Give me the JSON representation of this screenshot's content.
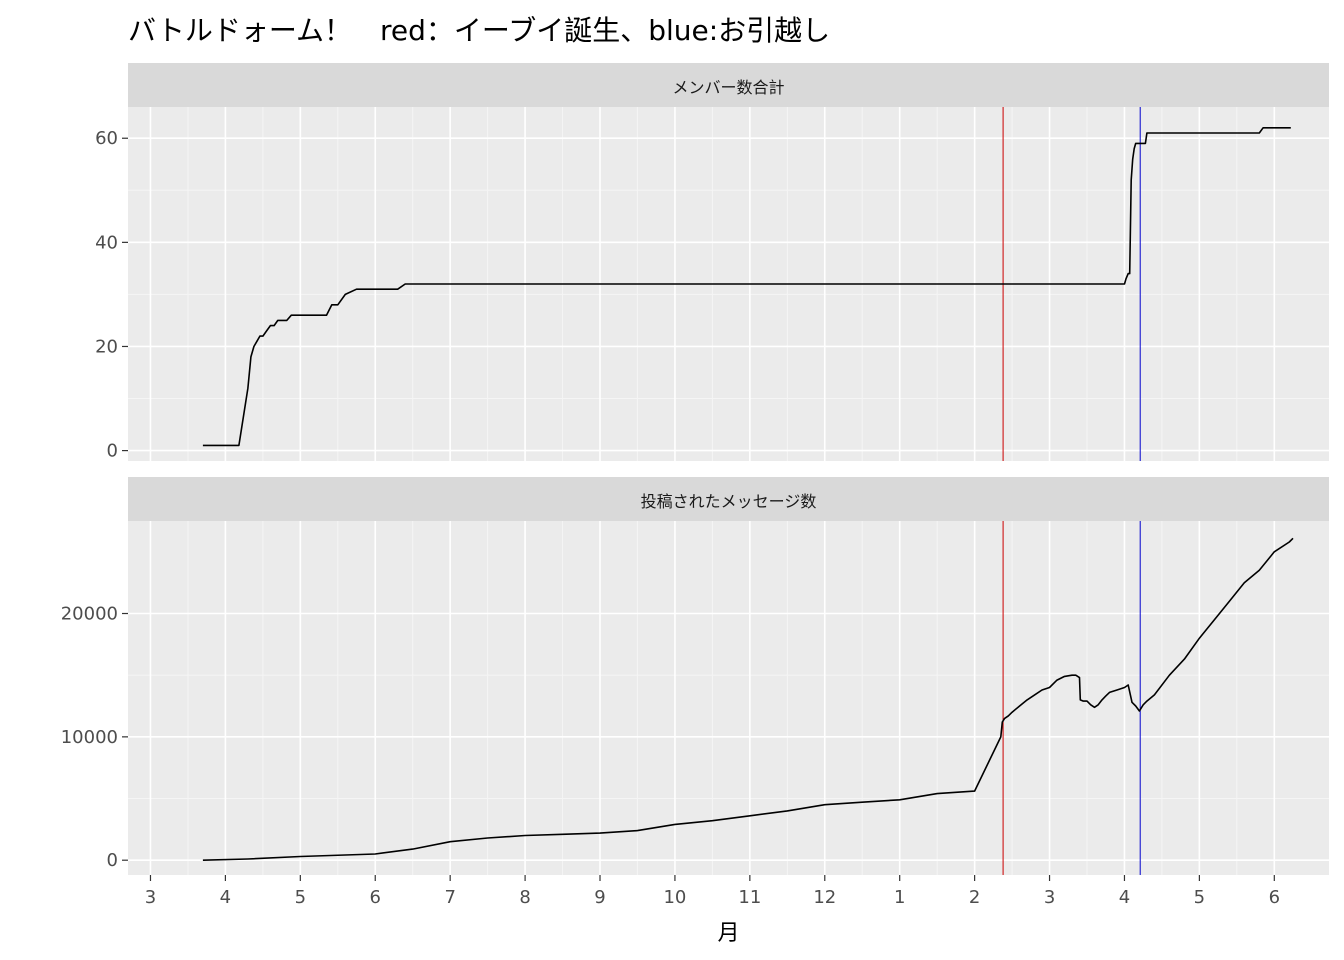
{
  "chart_data": {
    "type": "line",
    "title": "バトルドォーム！　red：イーブイ誕生、blue:お引越し",
    "xlabel": "月",
    "x_tick_labels": [
      "3",
      "4",
      "5",
      "6",
      "7",
      "8",
      "9",
      "10",
      "11",
      "12",
      "1",
      "2",
      "3",
      "4",
      "5",
      "6"
    ],
    "vlines": [
      {
        "x": 11.38,
        "color": "#cc0000"
      },
      {
        "x": 13.21,
        "color": "#0000cc"
      }
    ],
    "panels": [
      {
        "strip": "メンバー数合計",
        "ylim": [
          -2,
          66
        ],
        "yticks": [
          0,
          20,
          40,
          60
        ],
        "ytick_labels": [
          "0",
          "20",
          "40",
          "60"
        ],
        "series_color": "#000000",
        "x": [
          0.7,
          1.18,
          1.3,
          1.34,
          1.38,
          1.42,
          1.46,
          1.5,
          1.55,
          1.6,
          1.65,
          1.7,
          1.75,
          1.82,
          1.88,
          1.95,
          2.0,
          2.1,
          2.18,
          2.25,
          2.35,
          2.42,
          2.5,
          2.6,
          2.75,
          3.0,
          3.2,
          3.3,
          3.4,
          4.0,
          6.0,
          8.0,
          10.0,
          11.38,
          12.0,
          13.0,
          13.02,
          13.05,
          13.07,
          13.09,
          13.11,
          13.13,
          13.15,
          13.17,
          13.2,
          13.28,
          13.3,
          13.35,
          14.0,
          14.8,
          14.85,
          15.0,
          15.22
        ],
        "y": [
          1,
          1,
          12,
          18,
          20,
          21,
          22,
          22,
          23,
          24,
          24,
          25,
          25,
          25,
          26,
          26,
          26,
          26,
          26,
          26,
          26,
          28,
          28,
          30,
          31,
          31,
          31,
          31,
          32,
          32,
          32,
          32,
          32,
          32,
          32,
          32,
          33,
          34,
          34,
          52,
          56,
          58,
          59,
          59,
          59,
          59,
          61,
          61,
          61,
          61,
          62,
          62,
          62
        ]
      },
      {
        "strip": "投稿されたメッセージ数",
        "ylim": [
          -1200,
          27500
        ],
        "yticks": [
          0,
          10000,
          20000
        ],
        "ytick_labels": [
          "0",
          "10000",
          "20000"
        ],
        "series_color": "#000000",
        "x": [
          0.7,
          1.3,
          2.0,
          3.0,
          3.5,
          4.0,
          4.5,
          5.0,
          5.5,
          6.0,
          6.5,
          7.0,
          7.5,
          8.0,
          8.5,
          9.0,
          9.5,
          10.0,
          10.5,
          11.0,
          11.35,
          11.37,
          11.4,
          11.45,
          11.5,
          11.6,
          11.7,
          11.8,
          11.9,
          12.0,
          12.1,
          12.2,
          12.3,
          12.35,
          12.4,
          12.41,
          12.45,
          12.5,
          12.55,
          12.6,
          12.65,
          12.7,
          12.75,
          12.8,
          12.9,
          13.0,
          13.05,
          13.1,
          13.15,
          13.2,
          13.25,
          13.3,
          13.4,
          13.6,
          13.8,
          14.0,
          14.2,
          14.4,
          14.6,
          14.8,
          15.0,
          15.2,
          15.25
        ],
        "y": [
          0,
          100,
          300,
          500,
          900,
          1500,
          1800,
          2000,
          2100,
          2200,
          2400,
          2900,
          3200,
          3600,
          4000,
          4500,
          4700,
          4900,
          5400,
          5600,
          10000,
          11200,
          11500,
          11700,
          12000,
          12500,
          13000,
          13400,
          13800,
          14000,
          14600,
          14900,
          15000,
          15000,
          14800,
          13000,
          12900,
          12900,
          12600,
          12400,
          12600,
          13000,
          13300,
          13600,
          13800,
          14000,
          14200,
          12800,
          12500,
          12100,
          12600,
          12900,
          13400,
          15000,
          16300,
          18000,
          19500,
          21000,
          22500,
          23500,
          25000,
          25800,
          26100
        ]
      }
    ]
  }
}
